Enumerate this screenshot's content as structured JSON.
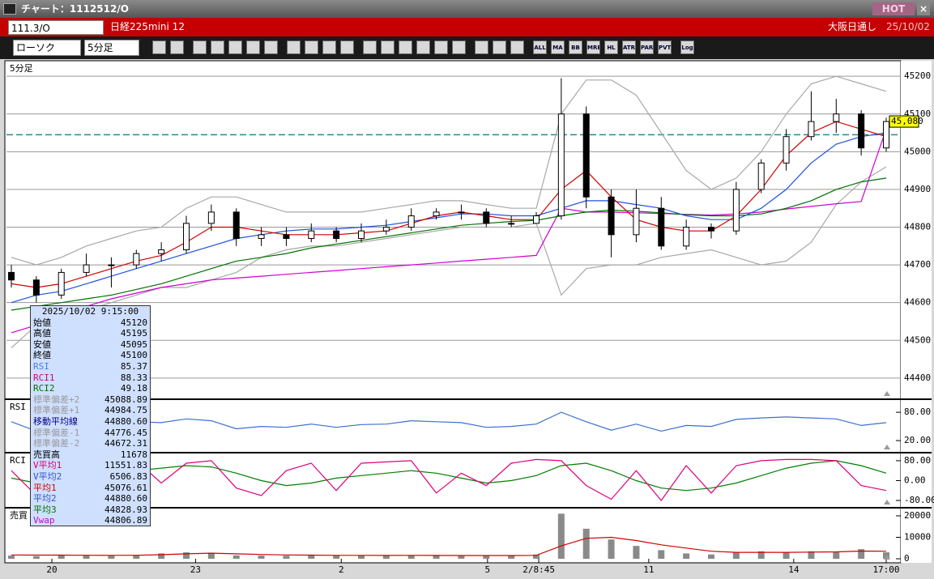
{
  "window": {
    "title": "チャート：1112512/O",
    "hot": "HOT",
    "close": "×"
  },
  "header": {
    "symbol": "111.3/O",
    "name": "日経225mini 12",
    "session": "大阪日通し",
    "date": "25/10/02"
  },
  "toolbar": {
    "chart_kind": "ローソク",
    "interval": "5分足",
    "buttons": [
      "ALL",
      "MA",
      "BB",
      "MRE",
      "HL",
      "ATR",
      "PAR",
      "PVT",
      "Log"
    ]
  },
  "info_box": {
    "datetime": "2025/10/02 9:15:00",
    "rows": [
      {
        "label": "始値",
        "value": "45120",
        "color": "#000"
      },
      {
        "label": "高値",
        "value": "45195",
        "color": "#000"
      },
      {
        "label": "安値",
        "value": "45095",
        "color": "#000"
      },
      {
        "label": "終値",
        "value": "45100",
        "color": "#000"
      },
      {
        "label": "RSI",
        "value": "85.37",
        "color": "#4a7fd8"
      },
      {
        "label": "RCI1",
        "value": "88.33",
        "color": "#d0006f"
      },
      {
        "label": "RCI2",
        "value": "49.18",
        "color": "#007000"
      },
      {
        "label": "標準偏差+2",
        "value": "45088.89",
        "color": "#999"
      },
      {
        "label": "標準偏差+1",
        "value": "44984.75",
        "color": "#999"
      },
      {
        "label": "移動平均線",
        "value": "44880.60",
        "color": "#000080"
      },
      {
        "label": "標準偏差-1",
        "value": "44776.45",
        "color": "#999"
      },
      {
        "label": "標準偏差-2",
        "value": "44672.31",
        "color": "#999"
      },
      {
        "label": "売買高",
        "value": "11678",
        "color": "#000"
      },
      {
        "label": "V平均1",
        "value": "11551.83",
        "color": "#d0006f"
      },
      {
        "label": "V平均2",
        "value": "6506.83",
        "color": "#3050d0"
      },
      {
        "label": "平均1",
        "value": "45076.61",
        "color": "#d00000"
      },
      {
        "label": "平均2",
        "value": "44880.60",
        "color": "#3050d0"
      },
      {
        "label": "平均3",
        "value": "44828.93",
        "color": "#007000"
      },
      {
        "label": "Vwap",
        "value": "44806.89",
        "color": "#d000d0"
      }
    ]
  },
  "chart_data": [
    {
      "type": "candlestick",
      "label": "5分足",
      "xlim": [
        0,
        35
      ],
      "ylim": [
        44346,
        45239
      ],
      "yticks": [
        44400,
        44500,
        44600,
        44700,
        44800,
        44900,
        45000,
        45100,
        45200
      ],
      "grid": true,
      "up_color": "#ffffff",
      "down_color": "#000000",
      "hline": 45045,
      "hline_color": "#2a8a8a",
      "current_price": {
        "value": 45080,
        "label": "45,080"
      },
      "ohlc": [
        [
          44680,
          44700,
          44640,
          44660
        ],
        [
          44660,
          44670,
          44600,
          44620
        ],
        [
          44620,
          44690,
          44610,
          44680
        ],
        [
          44680,
          44730,
          44670,
          44700
        ],
        [
          44700,
          44720,
          44640,
          44700
        ],
        [
          44700,
          44740,
          44690,
          44730
        ],
        [
          44730,
          44760,
          44710,
          44740
        ],
        [
          44740,
          44830,
          44730,
          44810
        ],
        [
          44810,
          44860,
          44790,
          44840
        ],
        [
          44840,
          44850,
          44750,
          44770
        ],
        [
          44770,
          44800,
          44750,
          44780
        ],
        [
          44780,
          44800,
          44750,
          44770
        ],
        [
          44770,
          44810,
          44760,
          44790
        ],
        [
          44790,
          44800,
          44760,
          44770
        ],
        [
          44770,
          44810,
          44760,
          44790
        ],
        [
          44790,
          44820,
          44780,
          44800
        ],
        [
          44800,
          44850,
          44790,
          44830
        ],
        [
          44830,
          44850,
          44820,
          44840
        ],
        [
          44840,
          44860,
          44820,
          44840
        ],
        [
          44840,
          44850,
          44800,
          44810
        ],
        [
          44810,
          44830,
          44800,
          44810
        ],
        [
          44810,
          44840,
          44810,
          44830
        ],
        [
          44830,
          45195,
          44820,
          45100
        ],
        [
          45100,
          45120,
          44850,
          44880
        ],
        [
          44880,
          44900,
          44720,
          44780
        ],
        [
          44780,
          44900,
          44760,
          44850
        ],
        [
          44850,
          44880,
          44740,
          44750
        ],
        [
          44750,
          44820,
          44740,
          44800
        ],
        [
          44800,
          44810,
          44770,
          44790
        ],
        [
          44790,
          44920,
          44780,
          44900
        ],
        [
          44900,
          44980,
          44890,
          44970
        ],
        [
          44970,
          45060,
          44950,
          45040
        ],
        [
          45040,
          45160,
          45030,
          45080
        ],
        [
          45080,
          45140,
          45050,
          45100
        ],
        [
          45100,
          45110,
          44990,
          45010
        ],
        [
          45010,
          45090,
          45000,
          45080
        ]
      ],
      "series": [
        {
          "color": "#a8a8a8",
          "values": [
            44720,
            44700,
            44720,
            44750,
            44770,
            44790,
            44800,
            44850,
            44880,
            44880,
            44860,
            44840,
            44840,
            44840,
            44840,
            44850,
            44860,
            44870,
            44870,
            44860,
            44850,
            44850,
            45100,
            45190,
            45190,
            45150,
            45050,
            44950,
            44900,
            44930,
            45000,
            45100,
            45180,
            45200,
            45180,
            45160
          ]
        },
        {
          "color": "#a8a8a8",
          "values": [
            44480,
            44540,
            44560,
            44580,
            44600,
            44620,
            44640,
            44640,
            44660,
            44680,
            44720,
            44740,
            44750,
            44750,
            44760,
            44770,
            44780,
            44790,
            44800,
            44800,
            44800,
            44810,
            44620,
            44690,
            44700,
            44700,
            44720,
            44730,
            44740,
            44720,
            44700,
            44710,
            44760,
            44860,
            44920,
            44960
          ]
        },
        {
          "color": "#d000d0",
          "values": [
            44520,
            44540,
            44560,
            44590,
            44610,
            44625,
            44640,
            44650,
            44660,
            44665,
            44670,
            44675,
            44680,
            44685,
            44690,
            44695,
            44700,
            44705,
            44710,
            44715,
            44720,
            44725,
            44850,
            44840,
            44840,
            44838,
            44836,
            44834,
            44832,
            44835,
            44840,
            44848,
            44855,
            44862,
            44868,
            45060
          ]
        },
        {
          "color": "#007000",
          "values": [
            44580,
            44590,
            44600,
            44610,
            44620,
            44635,
            44650,
            44670,
            44690,
            44710,
            44720,
            44730,
            44745,
            44755,
            44765,
            44775,
            44785,
            44795,
            44805,
            44810,
            44815,
            44818,
            44830,
            44840,
            44845,
            44842,
            44838,
            44833,
            44830,
            44830,
            44835,
            44850,
            44870,
            44900,
            44920,
            44930
          ]
        },
        {
          "color": "#2050e0",
          "values": [
            44600,
            44620,
            44630,
            44650,
            44670,
            44690,
            44710,
            44730,
            44750,
            44770,
            44780,
            44790,
            44795,
            44795,
            44800,
            44805,
            44815,
            44825,
            44835,
            44835,
            44830,
            44830,
            44850,
            44870,
            44870,
            44860,
            44850,
            44830,
            44820,
            44820,
            44850,
            44900,
            44970,
            45020,
            45040,
            45050
          ]
        },
        {
          "color": "#d00000",
          "values": [
            44650,
            44640,
            44650,
            44670,
            44690,
            44710,
            44725,
            44760,
            44800,
            44800,
            44790,
            44780,
            44780,
            44780,
            44785,
            44790,
            44810,
            44830,
            44840,
            44830,
            44820,
            44820,
            44900,
            44950,
            44880,
            44820,
            44800,
            44790,
            44790,
            44830,
            44900,
            44990,
            45050,
            45080,
            45060,
            45040
          ]
        }
      ]
    },
    {
      "type": "line",
      "label": "RSI",
      "xlim": [
        0,
        35
      ],
      "ylim": [
        -4,
        106
      ],
      "yticks": [
        {
          "value": 80,
          "label": "80.00"
        },
        {
          "value": 20,
          "label": "20.00"
        }
      ],
      "series": [
        {
          "color": "#3a70d0",
          "values": [
            60,
            40,
            62,
            58,
            55,
            60,
            58,
            66,
            62,
            45,
            50,
            48,
            55,
            48,
            54,
            55,
            62,
            60,
            58,
            48,
            50,
            55,
            80,
            60,
            42,
            55,
            40,
            52,
            50,
            65,
            68,
            70,
            68,
            66,
            52,
            58
          ]
        }
      ]
    },
    {
      "type": "line",
      "label": "RCI",
      "xlim": [
        0,
        35
      ],
      "ylim": [
        -106,
        109
      ],
      "yticks": [
        {
          "value": 80,
          "label": "80.00"
        },
        {
          "value": 0,
          "label": "0.00"
        },
        {
          "value": -80,
          "label": "-80.00"
        }
      ],
      "series": [
        {
          "color": "#008000",
          "values": [
            10,
            -10,
            -20,
            0,
            20,
            40,
            50,
            60,
            55,
            30,
            0,
            -20,
            -10,
            10,
            20,
            30,
            40,
            30,
            10,
            -10,
            0,
            20,
            60,
            70,
            40,
            0,
            -30,
            -40,
            -30,
            -10,
            20,
            50,
            70,
            80,
            60,
            30
          ]
        },
        {
          "color": "#e0007f",
          "values": [
            40,
            -60,
            20,
            70,
            60,
            80,
            -10,
            70,
            80,
            -30,
            -60,
            40,
            70,
            -40,
            70,
            75,
            80,
            -50,
            30,
            -20,
            70,
            85,
            80,
            -20,
            -75,
            40,
            -80,
            60,
            -50,
            60,
            80,
            85,
            85,
            80,
            -20,
            -40
          ]
        }
      ]
    },
    {
      "type": "bar",
      "label": "売買",
      "xlim": [
        0,
        35
      ],
      "ylim": [
        -1500,
        23400
      ],
      "yticks": [
        0,
        10000,
        20000
      ],
      "color": "#8a8a8a",
      "values": [
        1500,
        1200,
        1800,
        1600,
        1400,
        1700,
        2500,
        3000,
        2800,
        1600,
        1500,
        1400,
        1700,
        1500,
        1600,
        1500,
        1700,
        1400,
        1300,
        1600,
        1500,
        2000,
        21000,
        14000,
        9000,
        6000,
        4000,
        2500,
        2000,
        3000,
        3500,
        3000,
        3500,
        3000,
        4500,
        3000
      ],
      "series": [
        {
          "color": "#d00000",
          "values": [
            1800,
            1700,
            1700,
            1650,
            1600,
            1650,
            1900,
            2300,
            2600,
            2300,
            2000,
            1800,
            1700,
            1600,
            1600,
            1550,
            1600,
            1550,
            1500,
            1500,
            1500,
            1600,
            6000,
            9500,
            10000,
            8500,
            6500,
            5000,
            3500,
            3000,
            3000,
            3000,
            3100,
            3200,
            3600,
            3500
          ]
        }
      ],
      "xticks": [
        {
          "value": 1.62,
          "label": "20"
        },
        {
          "value": 7.37,
          "label": "23"
        },
        {
          "value": 13.2,
          "label": "2"
        },
        {
          "value": 19.05,
          "label": "5"
        },
        {
          "value": 21.1,
          "label": "2/8:45"
        },
        {
          "value": 25.5,
          "label": "11"
        },
        {
          "value": 31.3,
          "label": "14"
        },
        {
          "value": 35,
          "label": "17:00"
        }
      ]
    }
  ]
}
